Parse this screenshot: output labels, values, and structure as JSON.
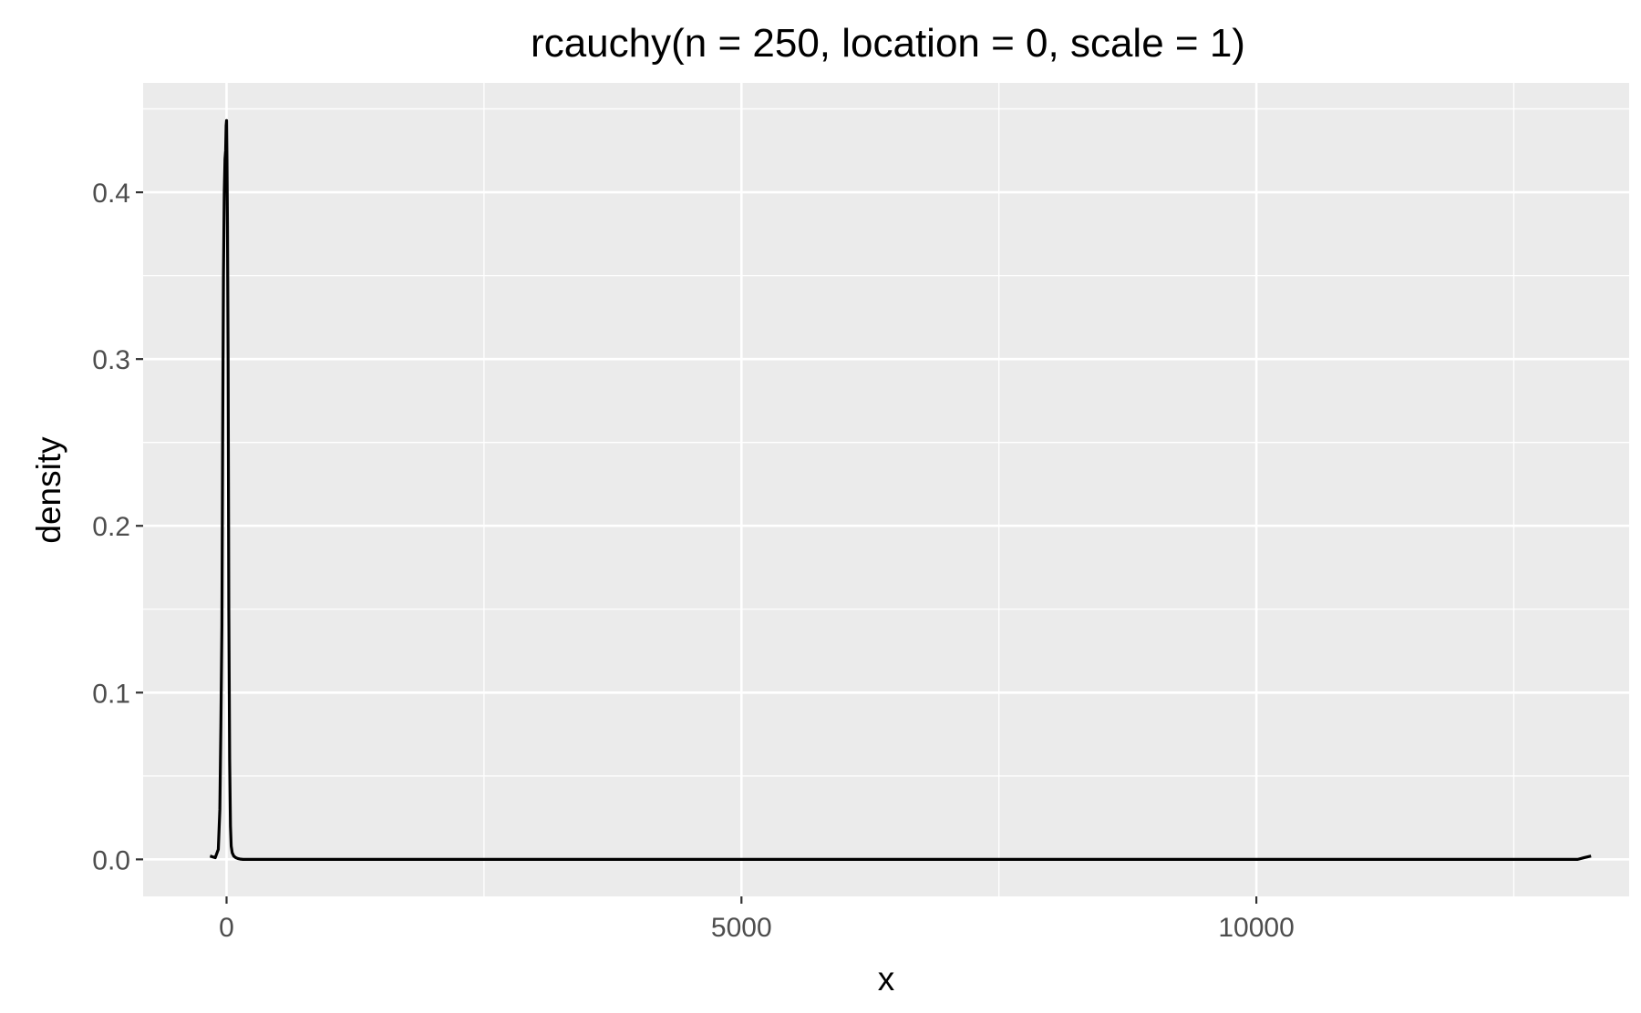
{
  "chart_data": {
    "type": "line",
    "title": "rcauchy(n = 250, location = 0, scale = 1)",
    "xlabel": "x",
    "ylabel": "density",
    "xlim": [
      -810,
      13620
    ],
    "ylim": [
      -0.0222,
      0.4656
    ],
    "x_ticks": [
      0,
      5000,
      10000
    ],
    "x_tick_labels": [
      "0",
      "5000",
      "10000"
    ],
    "x_minor_ticks": [
      2500,
      7500,
      12500
    ],
    "y_ticks": [
      0.0,
      0.1,
      0.2,
      0.3,
      0.4
    ],
    "y_tick_labels": [
      "0.0",
      "0.1",
      "0.2",
      "0.3",
      "0.4"
    ],
    "y_minor_ticks": [
      0.05,
      0.15,
      0.25,
      0.35,
      0.45
    ],
    "grid": true,
    "legend": "none",
    "colors": {
      "panel": "#ebebeb",
      "grid": "#ffffff",
      "line": "#000000",
      "tick_text": "#4d4d4d"
    },
    "series": [
      {
        "x": [
          -160,
          -110,
          -80,
          -65,
          -55,
          -45,
          -38,
          -30,
          -22,
          -15,
          -9,
          -4,
          0,
          4,
          9,
          15,
          22,
          30,
          38,
          45,
          55,
          70,
          90,
          110,
          130,
          160,
          300,
          1000,
          3000,
          6000,
          9000,
          12000,
          13020,
          13120,
          13180,
          13250
        ],
        "y": [
          0.002,
          0.001,
          0.006,
          0.03,
          0.08,
          0.14,
          0.25,
          0.35,
          0.4,
          0.42,
          0.425,
          0.44,
          0.443,
          0.42,
          0.38,
          0.3,
          0.15,
          0.06,
          0.02,
          0.008,
          0.004,
          0.002,
          0.001,
          0.0005,
          0.0002,
          0.0,
          0.0,
          0.0,
          0.0,
          0.0,
          0.0,
          0.0,
          0.0,
          0.0,
          0.001,
          0.002
        ]
      }
    ]
  }
}
